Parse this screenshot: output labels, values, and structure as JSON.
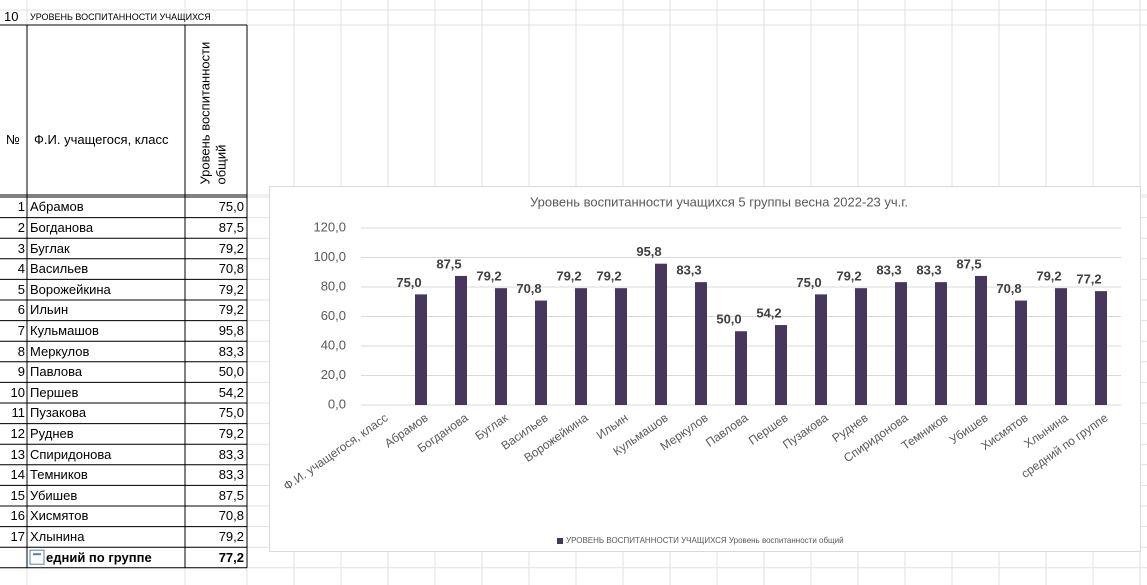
{
  "sheet": {
    "row_number": "10",
    "title": "УРОВЕНЬ ВОСПИТАННОСТИ УЧАЩИХСЯ"
  },
  "table": {
    "header": [
      "№",
      "Ф.И. учащегося, класс",
      "Уровень воспитанности общий"
    ],
    "rows": [
      [
        "1",
        "Абрамов",
        "75,0"
      ],
      [
        "2",
        "Богданова",
        "87,5"
      ],
      [
        "3",
        "Буглак",
        "79,2"
      ],
      [
        "4",
        "Васильев",
        "70,8"
      ],
      [
        "5",
        "Ворожейкина",
        "79,2"
      ],
      [
        "6",
        "Ильин",
        "79,2"
      ],
      [
        "7",
        "Кульмашов",
        "95,8"
      ],
      [
        "8",
        "Меркулов",
        "83,3"
      ],
      [
        "9",
        "Павлова",
        "50,0"
      ],
      [
        "10",
        "Першев",
        "54,2"
      ],
      [
        "11",
        "Пузакова",
        "75,0"
      ],
      [
        "12",
        "Руднев",
        "79,2"
      ],
      [
        "13",
        "Спиридонова",
        "83,3"
      ],
      [
        "14",
        "Темников",
        "83,3"
      ],
      [
        "15",
        "Убишев",
        "87,5"
      ],
      [
        "16",
        "Хисмятов",
        "70,8"
      ],
      [
        "17",
        "Хлынина",
        "79,2"
      ]
    ],
    "footer": [
      "едний по группе",
      "77,2"
    ]
  },
  "chart_data": {
    "type": "bar",
    "title": "Уровень воспитанности учащихся 5 группы весна 2022-23 уч.г.",
    "categories": [
      "Ф.И. учащегося, класс",
      "Абрамов",
      "Богданова",
      "Буглак",
      "Васильев",
      "Ворожейкина",
      "Ильин",
      "Кульмашов",
      "Меркулов",
      "Павлова",
      "Першев",
      "Пузакова",
      "Руднев",
      "Спиридонова",
      "Темников",
      "Убишев",
      "Хисмятов",
      "Хлынина",
      "средний по группе"
    ],
    "series": [
      {
        "name": "УРОВЕНЬ ВОСПИТАННОСТИ УЧАЩИХСЯ Уровень воспитанности общий",
        "color": "#47375c",
        "values": [
          null,
          75.0,
          87.5,
          79.2,
          70.8,
          79.2,
          79.2,
          95.8,
          83.3,
          50.0,
          54.2,
          75.0,
          79.2,
          83.3,
          83.3,
          87.5,
          70.8,
          79.2,
          77.2
        ],
        "value_labels": [
          null,
          "75,0",
          "87,5",
          "79,2",
          "70,8",
          "79,2",
          "79,2",
          "95,8",
          "83,3",
          "50,0",
          "54,2",
          "75,0",
          "79,2",
          "83,3",
          "83,3",
          "87,5",
          "70,8",
          "79,2",
          "77,2"
        ]
      }
    ],
    "ylim": [
      0,
      120
    ],
    "yticks": [
      {
        "value": 0,
        "label": "0,0"
      },
      {
        "value": 20,
        "label": "20,0"
      },
      {
        "value": 40,
        "label": "40,0"
      },
      {
        "value": 60,
        "label": "60,0"
      },
      {
        "value": 80,
        "label": "80,0"
      },
      {
        "value": 100,
        "label": "100,0"
      },
      {
        "value": 120,
        "label": "120,0"
      }
    ],
    "legend": "bottom",
    "grid": true
  }
}
